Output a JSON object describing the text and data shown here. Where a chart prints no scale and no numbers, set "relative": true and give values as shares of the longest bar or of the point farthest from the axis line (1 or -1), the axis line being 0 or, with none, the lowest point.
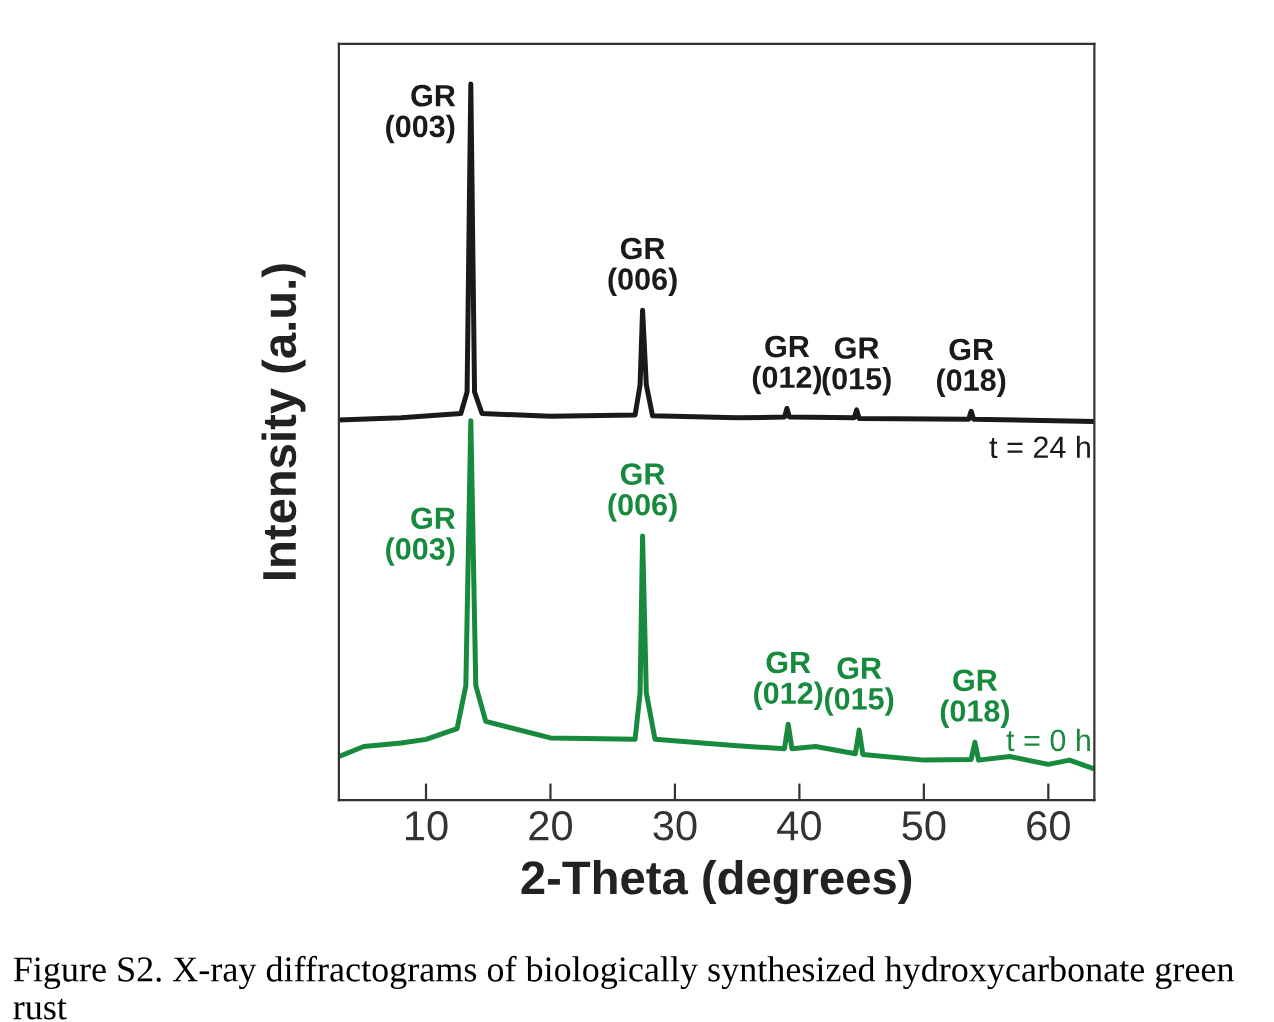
{
  "chart_data": {
    "type": "line",
    "relative": true,
    "xlabel": "2-Theta (degrees)",
    "ylabel": "Intensity (a.u.)",
    "xlim": [
      3,
      63.7
    ],
    "xticks": [
      10,
      20,
      30,
      40,
      50,
      60
    ],
    "grid": false,
    "legend": false,
    "marker": "none",
    "line_style": "solid",
    "annotations": [
      {
        "text": "GR\n(003)",
        "x": 13.6,
        "y": 1.0
      },
      {
        "text": "GR\n(006)",
        "x": 27.4,
        "y": 0.684
      },
      {
        "text": "GR\n(012)",
        "x": 39.0,
        "y": 0.547
      },
      {
        "text": "GR\n(015)",
        "x": 44.6,
        "y": 0.545
      },
      {
        "text": "GR\n(018)",
        "x": 53.8,
        "y": 0.543
      },
      {
        "text": "GR\n(003)",
        "x": 13.6,
        "y": 0.53
      },
      {
        "text": "GR\n(006)",
        "x": 27.4,
        "y": 0.369
      },
      {
        "text": "GR\n(012)",
        "x": 39.1,
        "y": 0.106
      },
      {
        "text": "GR\n(015)",
        "x": 44.8,
        "y": 0.098
      },
      {
        "text": "GR\n(018)",
        "x": 54.1,
        "y": 0.081
      },
      "Figure S2. X-ray diffractograms of biologically synthesized hydroxycarbonate green rust"
    ],
    "series": [
      {
        "name": "t = 24 h",
        "color": "#1a1a1a",
        "x": [
          3,
          8,
          12.8,
          13.3,
          13.6,
          13.9,
          14.5,
          20,
          26.8,
          27.2,
          27.4,
          27.7,
          28.2,
          35,
          38.8,
          39.0,
          39.2,
          44.4,
          44.6,
          44.8,
          53.6,
          53.8,
          54.0,
          63.5
        ],
        "values": [
          0.531,
          0.534,
          0.54,
          0.57,
          1.0,
          0.57,
          0.54,
          0.536,
          0.538,
          0.58,
          0.684,
          0.58,
          0.537,
          0.534,
          0.535,
          0.547,
          0.535,
          0.534,
          0.545,
          0.533,
          0.532,
          0.543,
          0.532,
          0.529
        ]
      },
      {
        "name": "t = 0 h",
        "color": "#178a3e",
        "x": [
          3,
          5,
          8,
          10,
          12.5,
          13.2,
          13.6,
          14.0,
          14.8,
          20,
          26.8,
          27.2,
          27.4,
          27.7,
          28.4,
          35,
          38.8,
          39.1,
          39.4,
          41.3,
          44.5,
          44.8,
          45.1,
          50,
          53.8,
          54.1,
          54.4,
          56.9,
          60,
          61.7,
          63.5
        ],
        "values": [
          0.061,
          0.075,
          0.08,
          0.085,
          0.1,
          0.16,
          0.53,
          0.16,
          0.11,
          0.087,
          0.085,
          0.15,
          0.369,
          0.15,
          0.085,
          0.076,
          0.072,
          0.106,
          0.072,
          0.075,
          0.065,
          0.098,
          0.064,
          0.056,
          0.057,
          0.081,
          0.056,
          0.061,
          0.05,
          0.056,
          0.045
        ]
      }
    ]
  }
}
